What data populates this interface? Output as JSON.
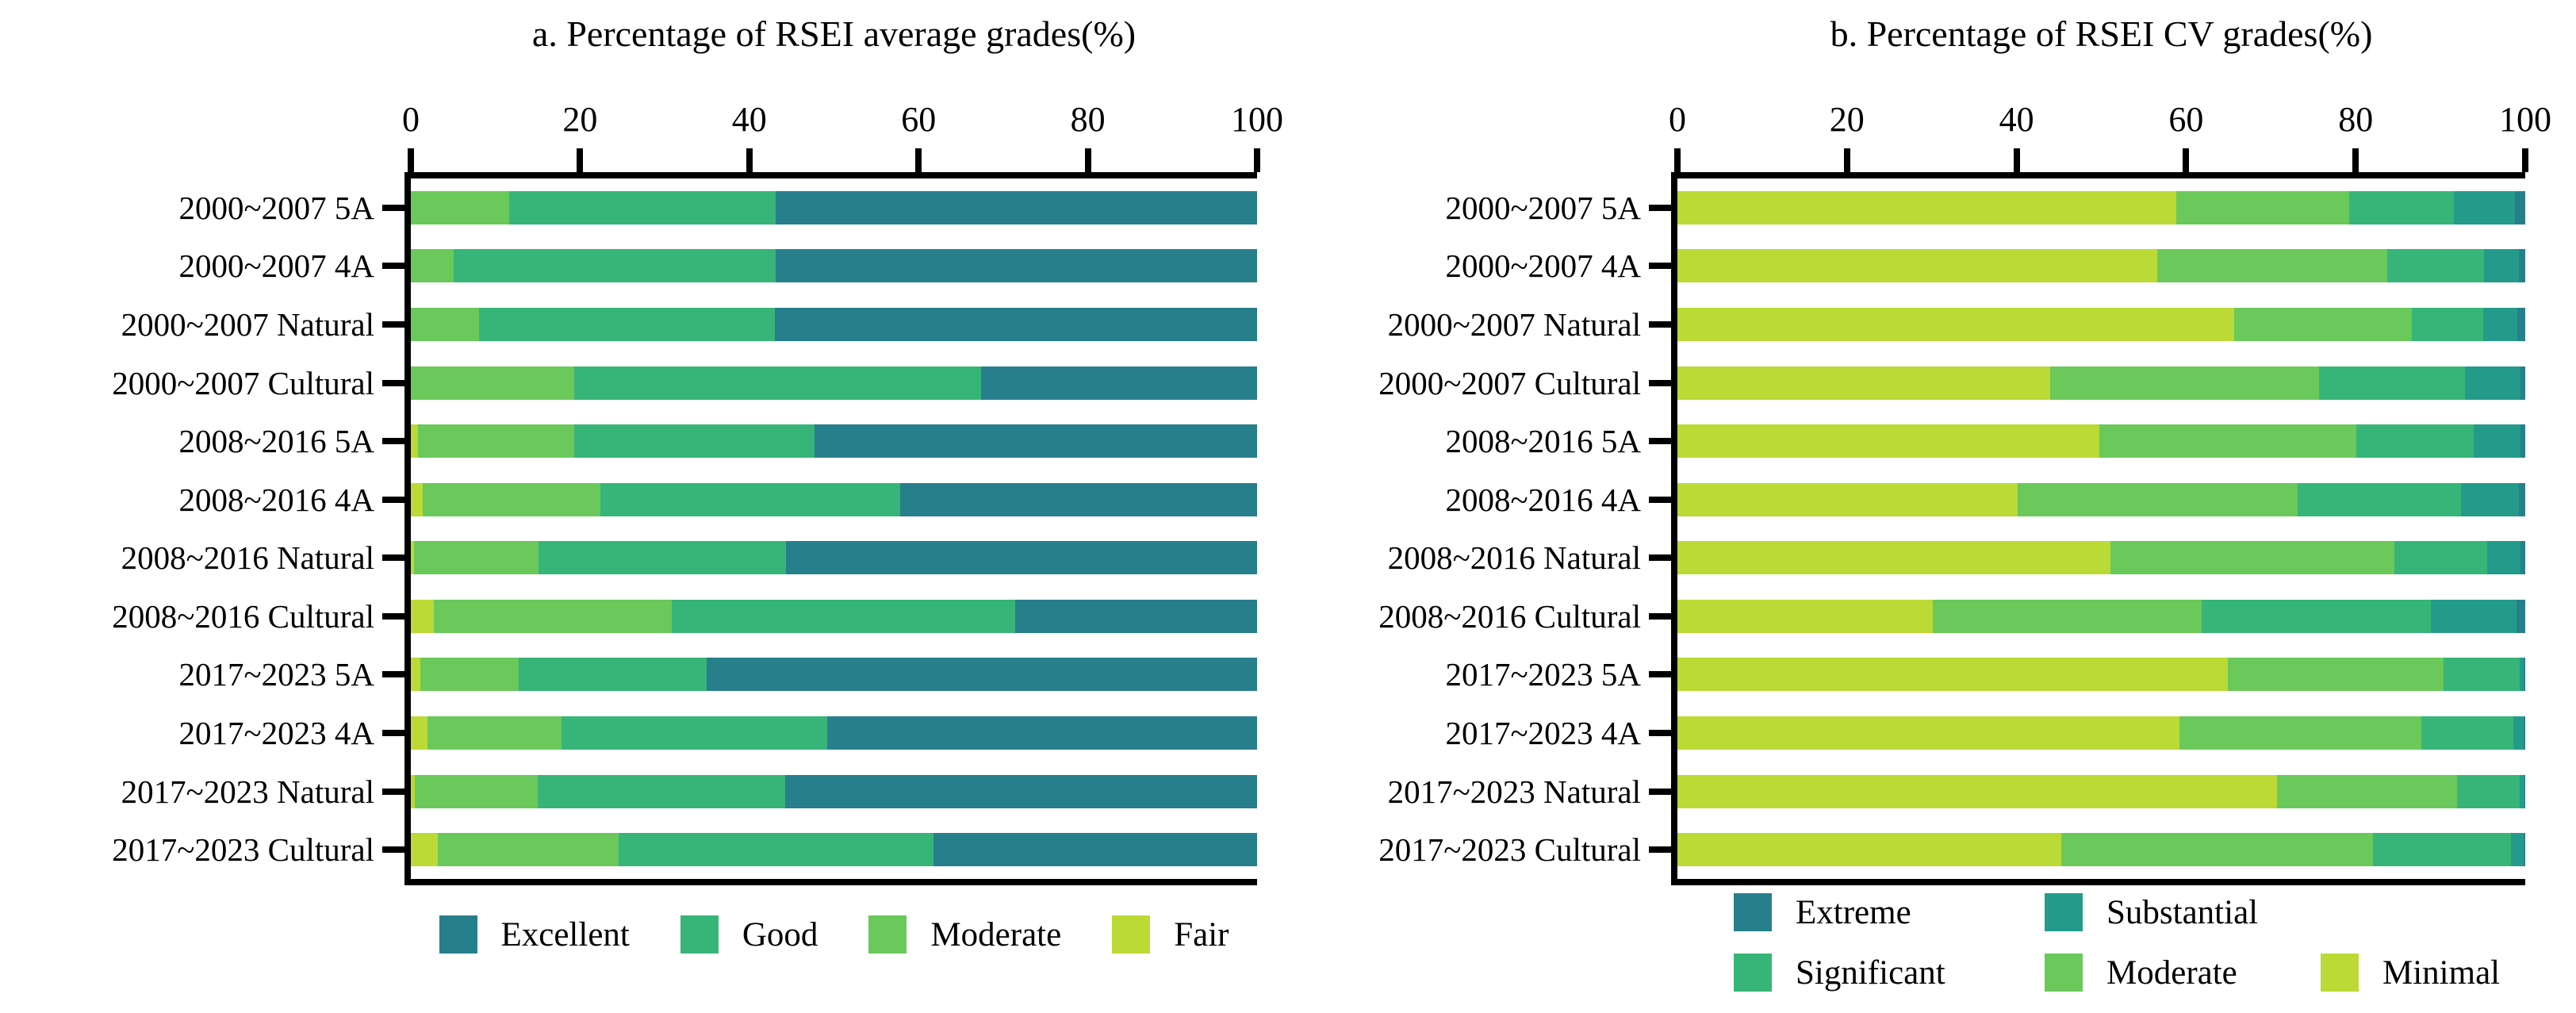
{
  "figure": {
    "background": "#ffffff",
    "axis_color": "#000000"
  },
  "palette": {
    "excellent_extreme": "#287F8C",
    "substantial": "#249B8A",
    "good_significant": "#37B578",
    "moderate": "#6AC95A",
    "fair_minimal": "#BBDA35"
  },
  "chart_data": [
    {
      "id": "a",
      "type": "bar",
      "orientation": "horizontal-stacked",
      "title": "a. Percentage of RSEI average grades(%)",
      "xlabel": "",
      "ylabel": "",
      "xlim": [
        0,
        100
      ],
      "grid": false,
      "legend_position": "bottom",
      "axis": {
        "position": "top",
        "max": 100,
        "ticks": [
          0,
          20,
          40,
          60,
          80,
          100
        ]
      },
      "categories": [
        "2000~2007 5A",
        "2000~2007 4A",
        "2000~2007 Natural",
        "2000~2007 Cultural",
        "2008~2016 5A",
        "2008~2016 4A",
        "2008~2016 Natural",
        "2008~2016 Cultural",
        "2017~2023 5A",
        "2017~2023 4A",
        "2017~2023 Natural",
        "2017~2023 Cultural"
      ],
      "series": [
        {
          "name": "Fair",
          "color": "#BBDA35",
          "values": [
            0,
            0,
            0,
            0,
            0.8,
            1.4,
            0.4,
            2.7,
            1.1,
            2.0,
            0.5,
            3.2
          ]
        },
        {
          "name": "Moderate",
          "color": "#6AC95A",
          "values": [
            11.6,
            5.1,
            8.1,
            19.3,
            18.5,
            21.0,
            14.7,
            28.1,
            11.6,
            15.8,
            14.5,
            21.4
          ]
        },
        {
          "name": "Good",
          "color": "#37B578",
          "values": [
            31.5,
            38.0,
            34.9,
            48.1,
            28.4,
            35.4,
            29.2,
            40.6,
            22.3,
            31.4,
            29.2,
            37.2
          ]
        },
        {
          "name": "Excellent",
          "color": "#287F8C",
          "values": [
            56.9,
            56.9,
            57.0,
            32.6,
            52.3,
            42.2,
            55.7,
            28.6,
            65.0,
            50.8,
            55.8,
            38.2
          ]
        }
      ],
      "legend_rows": [
        [
          {
            "label": "Excellent",
            "color": "#287F8C"
          },
          {
            "label": "Good",
            "color": "#37B578"
          },
          {
            "label": "Moderate",
            "color": "#6AC95A"
          },
          {
            "label": "Fair",
            "color": "#BBDA35"
          }
        ]
      ]
    },
    {
      "id": "b",
      "type": "bar",
      "orientation": "horizontal-stacked",
      "title": "b. Percentage of RSEI CV grades(%)",
      "xlabel": "",
      "ylabel": "",
      "xlim": [
        0,
        100
      ],
      "grid": false,
      "legend_position": "bottom",
      "axis": {
        "position": "top",
        "max": 100,
        "ticks": [
          0,
          20,
          40,
          60,
          80,
          100
        ]
      },
      "categories": [
        "2000~2007 5A",
        "2000~2007 4A",
        "2000~2007 Natural",
        "2000~2007 Cultural",
        "2008~2016 5A",
        "2008~2016 4A",
        "2008~2016 Natural",
        "2008~2016 Cultural",
        "2017~2023 5A",
        "2017~2023 4A",
        "2017~2023 Natural",
        "2017~2023 Cultural"
      ],
      "series": [
        {
          "name": "Minimal",
          "color": "#BBDA35",
          "values": [
            58.8,
            56.6,
            65.7,
            44.0,
            49.8,
            40.1,
            51.1,
            30.1,
            64.9,
            59.2,
            70.7,
            45.3
          ]
        },
        {
          "name": "Moderate",
          "color": "#6AC95A",
          "values": [
            20.4,
            27.1,
            20.9,
            31.7,
            30.3,
            33.1,
            33.5,
            31.7,
            25.5,
            28.5,
            21.3,
            36.7
          ]
        },
        {
          "name": "Significant",
          "color": "#37B578",
          "values": [
            12.4,
            11.4,
            8.4,
            17.2,
            13.8,
            19.2,
            10.9,
            27.1,
            8.9,
            10.9,
            7.3,
            16.3
          ]
        },
        {
          "name": "Substantial",
          "color": "#249B8A",
          "values": [
            7.2,
            4.2,
            4.1,
            6.5,
            5.5,
            6.9,
            3.9,
            10.1,
            0.5,
            1.2,
            0.6,
            1.5
          ]
        },
        {
          "name": "Extreme",
          "color": "#287F8C",
          "values": [
            1.2,
            0.7,
            0.9,
            0.6,
            0.6,
            0.7,
            0.6,
            1.0,
            0.2,
            0.2,
            0.1,
            0.2
          ]
        }
      ],
      "legend_rows": [
        [
          {
            "label": "Extreme",
            "color": "#287F8C"
          },
          {
            "label": "Substantial",
            "color": "#249B8A"
          }
        ],
        [
          {
            "label": "Significant",
            "color": "#37B578"
          },
          {
            "label": "Moderate",
            "color": "#6AC95A"
          },
          {
            "label": "Minimal",
            "color": "#BBDA35"
          }
        ]
      ]
    }
  ]
}
